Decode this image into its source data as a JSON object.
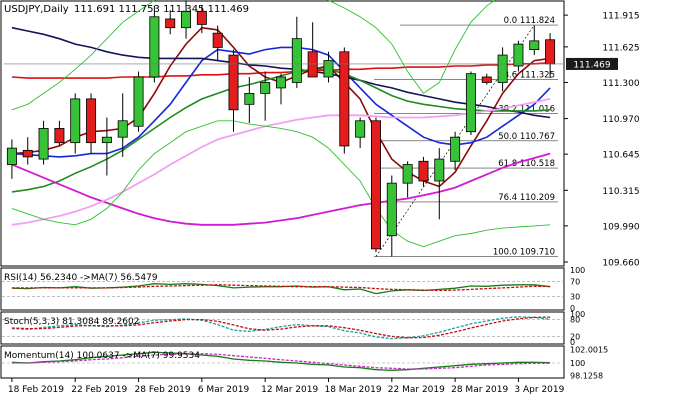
{
  "header": {
    "symbol_timeframe": "USDJPY,Daily",
    "ohlc": "111.691 111.753 111.345 111.469"
  },
  "colors": {
    "bull": "#38c238",
    "bear": "#e11d1d",
    "ma_red": "#e01010",
    "ma_darkred": "#8b0a0a",
    "ma_blue": "#1428d8",
    "ma_navy": "#14145a",
    "ma_green": "#208a20",
    "ma_magenta": "#d11ad1",
    "ma_pink": "#f2a0f2",
    "bollinger": "#30c030",
    "fib": "#000000",
    "price_label_bg": "#1a1a1a",
    "rsi_line": "#1a7a1a",
    "rsi_ma": "#c01010",
    "stoch_main": "#20a0a0",
    "stoch_signal": "#c01010",
    "mom_line": "#1a7a1a",
    "mom_ma": "#c030c0"
  },
  "chart_data": [
    {
      "type": "candlestick",
      "title": "USDJPY,Daily",
      "ylim": [
        109.66,
        111.98
      ],
      "price_axis_ticks": [
        "111.915",
        "111.625",
        "111.300",
        "110.970",
        "110.645",
        "110.315",
        "109.990",
        "109.660"
      ],
      "current_price": "111.469",
      "x_labels": [
        "18 Feb 2019",
        "22 Feb 2019",
        "28 Feb 2019",
        "6 Mar 2019",
        "12 Mar 2019",
        "18 Mar 2019",
        "22 Mar 2019",
        "28 Mar 2019",
        "3 Apr 2019"
      ],
      "x_label_index": [
        0,
        4,
        8,
        12,
        16,
        20,
        24,
        28,
        32
      ],
      "candles": [
        {
          "o": 110.55,
          "h": 110.78,
          "l": 110.42,
          "c": 110.7
        },
        {
          "o": 110.68,
          "h": 110.8,
          "l": 110.55,
          "c": 110.62
        },
        {
          "o": 110.6,
          "h": 110.95,
          "l": 110.55,
          "c": 110.88
        },
        {
          "o": 110.88,
          "h": 110.95,
          "l": 110.72,
          "c": 110.75
        },
        {
          "o": 110.75,
          "h": 111.2,
          "l": 110.65,
          "c": 111.15
        },
        {
          "o": 111.15,
          "h": 111.2,
          "l": 110.65,
          "c": 110.75
        },
        {
          "o": 110.75,
          "h": 110.98,
          "l": 110.45,
          "c": 110.8
        },
        {
          "o": 110.8,
          "h": 111.2,
          "l": 110.62,
          "c": 110.95
        },
        {
          "o": 110.9,
          "h": 111.4,
          "l": 110.85,
          "c": 111.35
        },
        {
          "o": 111.35,
          "h": 112.0,
          "l": 111.3,
          "c": 111.9
        },
        {
          "o": 111.88,
          "h": 111.96,
          "l": 111.74,
          "c": 111.8
        },
        {
          "o": 111.8,
          "h": 112.05,
          "l": 111.7,
          "c": 111.95
        },
        {
          "o": 111.95,
          "h": 112.0,
          "l": 111.75,
          "c": 111.83
        },
        {
          "o": 111.75,
          "h": 111.82,
          "l": 111.5,
          "c": 111.62
        },
        {
          "o": 111.55,
          "h": 111.6,
          "l": 110.85,
          "c": 111.05
        },
        {
          "o": 111.1,
          "h": 111.35,
          "l": 110.93,
          "c": 111.2
        },
        {
          "o": 111.2,
          "h": 111.4,
          "l": 110.95,
          "c": 111.3
        },
        {
          "o": 111.25,
          "h": 111.38,
          "l": 111.1,
          "c": 111.35
        },
        {
          "o": 111.3,
          "h": 111.9,
          "l": 111.25,
          "c": 111.7
        },
        {
          "o": 111.58,
          "h": 111.85,
          "l": 111.35,
          "c": 111.35
        },
        {
          "o": 111.35,
          "h": 111.58,
          "l": 111.3,
          "c": 111.5
        },
        {
          "o": 111.58,
          "h": 111.62,
          "l": 110.65,
          "c": 110.72
        },
        {
          "o": 110.8,
          "h": 110.98,
          "l": 110.7,
          "c": 110.95
        },
        {
          "o": 110.95,
          "h": 110.98,
          "l": 109.75,
          "c": 109.78
        },
        {
          "o": 109.9,
          "h": 110.45,
          "l": 109.71,
          "c": 110.38
        },
        {
          "o": 110.38,
          "h": 110.58,
          "l": 110.25,
          "c": 110.55
        },
        {
          "o": 110.58,
          "h": 110.62,
          "l": 110.35,
          "c": 110.4
        },
        {
          "o": 110.4,
          "h": 110.7,
          "l": 110.05,
          "c": 110.6
        },
        {
          "o": 110.58,
          "h": 110.85,
          "l": 110.5,
          "c": 110.8
        },
        {
          "o": 110.85,
          "h": 111.4,
          "l": 110.82,
          "c": 111.38
        },
        {
          "o": 111.35,
          "h": 111.38,
          "l": 111.28,
          "c": 111.3
        },
        {
          "o": 111.3,
          "h": 111.62,
          "l": 111.22,
          "c": 111.55
        },
        {
          "o": 111.45,
          "h": 111.68,
          "l": 111.4,
          "c": 111.65
        },
        {
          "o": 111.6,
          "h": 111.82,
          "l": 111.55,
          "c": 111.68
        },
        {
          "o": 111.69,
          "h": 111.75,
          "l": 111.34,
          "c": 111.47
        }
      ],
      "moving_averages": [
        {
          "key": "ma_red",
          "values": [
            111.35,
            111.34,
            111.34,
            111.34,
            111.34,
            111.34,
            111.34,
            111.35,
            111.35,
            111.35,
            111.36,
            111.36,
            111.37,
            111.37,
            111.38,
            111.38,
            111.39,
            111.39,
            111.4,
            111.41,
            111.41,
            111.42,
            111.42,
            111.43,
            111.43,
            111.44,
            111.44,
            111.44,
            111.45,
            111.45,
            111.46,
            111.46,
            111.47,
            111.47,
            111.48
          ]
        },
        {
          "key": "ma_darkred",
          "values": [
            110.65,
            110.66,
            110.68,
            110.72,
            110.8,
            110.85,
            110.86,
            110.88,
            110.98,
            111.2,
            111.45,
            111.65,
            111.8,
            111.78,
            111.62,
            111.45,
            111.35,
            111.3,
            111.36,
            111.42,
            111.45,
            111.3,
            111.15,
            110.85,
            110.6,
            110.48,
            110.4,
            110.35,
            110.48,
            110.72,
            110.95,
            111.2,
            111.38,
            111.5,
            111.52
          ]
        },
        {
          "key": "ma_blue",
          "values": [
            110.65,
            110.64,
            110.63,
            110.62,
            110.63,
            110.65,
            110.65,
            110.7,
            110.8,
            110.95,
            111.1,
            111.3,
            111.5,
            111.6,
            111.58,
            111.56,
            111.6,
            111.62,
            111.62,
            111.6,
            111.55,
            111.4,
            111.25,
            111.1,
            111.0,
            110.9,
            110.8,
            110.75,
            110.73,
            110.75,
            110.8,
            110.9,
            111.0,
            111.1,
            111.25
          ]
        },
        {
          "key": "ma_navy",
          "values": [
            111.8,
            111.77,
            111.74,
            111.7,
            111.65,
            111.62,
            111.58,
            111.55,
            111.53,
            111.52,
            111.52,
            111.52,
            111.52,
            111.5,
            111.48,
            111.46,
            111.45,
            111.43,
            111.42,
            111.4,
            111.38,
            111.35,
            111.32,
            111.28,
            111.25,
            111.21,
            111.18,
            111.15,
            111.12,
            111.1,
            111.08,
            111.05,
            111.03,
            111.0,
            110.98
          ]
        },
        {
          "key": "ma_green",
          "values": [
            110.3,
            110.32,
            110.35,
            110.4,
            110.47,
            110.53,
            110.6,
            110.68,
            110.78,
            110.88,
            110.98,
            111.07,
            111.15,
            111.2,
            111.25,
            111.28,
            111.32,
            111.36,
            111.4,
            111.42,
            111.42,
            111.38,
            111.32,
            111.25,
            111.18,
            111.13,
            111.1,
            111.08,
            111.06,
            111.05,
            111.04,
            111.04,
            111.04,
            111.04,
            111.05
          ]
        },
        {
          "key": "ma_magenta",
          "values": [
            110.55,
            110.49,
            110.43,
            110.37,
            110.31,
            110.25,
            110.2,
            110.15,
            110.1,
            110.06,
            110.03,
            110.01,
            110.0,
            110.0,
            110.0,
            110.01,
            110.02,
            110.04,
            110.06,
            110.09,
            110.12,
            110.15,
            110.18,
            110.2,
            110.22,
            110.24,
            110.27,
            110.3,
            110.34,
            110.4,
            110.46,
            110.52,
            110.57,
            110.61,
            110.65
          ]
        },
        {
          "key": "ma_pink",
          "values": [
            110.0,
            110.02,
            110.05,
            110.08,
            110.12,
            110.17,
            110.23,
            110.3,
            110.38,
            110.46,
            110.55,
            110.63,
            110.71,
            110.78,
            110.82,
            110.86,
            110.9,
            110.93,
            110.96,
            110.98,
            111.0,
            111.0,
            111.0,
            110.99,
            110.98,
            110.98,
            110.98,
            110.99,
            111.0,
            111.02,
            111.04,
            111.06,
            111.09,
            111.12,
            111.15
          ]
        },
        {
          "key": "bollinger",
          "values": [
            111.05,
            111.1,
            111.2,
            111.3,
            111.42,
            111.55,
            111.7,
            111.85,
            111.95,
            112.05,
            112.1,
            112.15,
            112.18,
            112.2,
            112.2,
            112.2,
            112.18,
            112.15,
            112.15,
            112.1,
            112.05,
            111.98,
            111.9,
            111.8,
            111.65,
            111.4,
            111.2,
            111.3,
            111.6,
            111.85,
            112.0,
            112.1,
            112.15,
            112.12,
            112.08
          ]
        },
        {
          "key": "bollinger",
          "values": [
            110.15,
            110.1,
            110.05,
            110.02,
            110.0,
            110.05,
            110.15,
            110.3,
            110.5,
            110.65,
            110.75,
            110.85,
            110.9,
            110.95,
            110.95,
            110.92,
            110.9,
            110.88,
            110.85,
            110.8,
            110.7,
            110.55,
            110.4,
            110.15,
            109.95,
            109.85,
            109.8,
            109.85,
            109.9,
            109.92,
            109.95,
            109.97,
            109.98,
            109.99,
            110.0
          ]
        }
      ],
      "fibonacci": [
        {
          "label": "0.0 111.824",
          "price": 111.824
        },
        {
          "label": "23.6 111.325",
          "price": 111.325
        },
        {
          "label": "38.2 111.016",
          "price": 111.016
        },
        {
          "label": "50.0 110.767",
          "price": 110.767
        },
        {
          "label": "61.8 110.518",
          "price": 110.518
        },
        {
          "label": "76.4 110.209",
          "price": 110.209
        },
        {
          "label": "100.0 109.710",
          "price": 109.71
        }
      ],
      "fib_anchor": {
        "from_index": 23,
        "from_price": 109.71,
        "to_index": 33,
        "to_price": 111.824
      }
    },
    {
      "type": "line",
      "title": "RSI(14) 56.2340 ->MA(7) 56.5479",
      "ylim": [
        0,
        100
      ],
      "levels": [
        70,
        30
      ],
      "axis_ticks": [
        "100",
        "70",
        "30",
        "0"
      ],
      "series": [
        {
          "key": "rsi_line",
          "values": [
            52,
            51,
            54,
            53,
            56,
            52,
            53,
            55,
            58,
            64,
            62,
            64,
            62,
            59,
            53,
            55,
            56,
            56,
            58,
            55,
            56,
            48,
            50,
            38,
            45,
            48,
            46,
            49,
            52,
            58,
            57,
            60,
            61,
            61,
            56
          ]
        },
        {
          "key": "rsi_ma",
          "values": [
            53,
            53,
            53,
            53,
            53,
            53,
            53,
            54,
            55,
            57,
            58,
            59,
            60,
            61,
            60,
            59,
            58,
            57,
            56,
            56,
            56,
            55,
            54,
            51,
            49,
            48,
            47,
            46,
            47,
            49,
            51,
            53,
            55,
            57,
            56.5
          ]
        }
      ]
    },
    {
      "type": "line",
      "title": "Stoch(5,3,3) 81.3084 89.2602",
      "ylim": [
        0,
        100
      ],
      "levels": [
        80,
        20
      ],
      "axis_ticks": [
        "100",
        "80",
        "20",
        "0"
      ],
      "series": [
        {
          "key": "stoch_main",
          "values": [
            48,
            45,
            52,
            58,
            62,
            58,
            55,
            60,
            68,
            78,
            80,
            82,
            78,
            62,
            42,
            38,
            45,
            55,
            62,
            58,
            55,
            40,
            32,
            18,
            12,
            15,
            22,
            35,
            50,
            65,
            75,
            85,
            90,
            88,
            81
          ]
        },
        {
          "key": "stoch_signal",
          "values": [
            50,
            48,
            48,
            52,
            57,
            59,
            58,
            58,
            61,
            69,
            75,
            80,
            80,
            74,
            61,
            47,
            42,
            46,
            54,
            58,
            58,
            51,
            42,
            30,
            20,
            15,
            16,
            24,
            36,
            50,
            63,
            75,
            83,
            88,
            89
          ]
        }
      ]
    },
    {
      "type": "line",
      "title": "Momentum(14) 100.0637 ->MA(7) 99.9534",
      "ylim": [
        98.05,
        102.25
      ],
      "levels": [
        100
      ],
      "axis_ticks": [
        "102.0015",
        "100",
        "98.1258"
      ],
      "series": [
        {
          "key": "mom_line",
          "values": [
            100.1,
            100.0,
            100.2,
            100.3,
            100.5,
            100.8,
            101.0,
            101.2,
            101.4,
            101.6,
            101.5,
            101.4,
            101.2,
            101.0,
            100.6,
            100.4,
            100.3,
            100.1,
            100.0,
            99.8,
            99.7,
            99.4,
            99.3,
            99.0,
            98.9,
            99.0,
            99.2,
            99.4,
            99.6,
            99.8,
            99.9,
            100.0,
            100.1,
            100.1,
            100.06
          ]
        },
        {
          "key": "mom_ma",
          "values": [
            100.0,
            100.0,
            100.1,
            100.2,
            100.3,
            100.5,
            100.6,
            100.8,
            101.0,
            101.2,
            101.3,
            101.4,
            101.4,
            101.3,
            101.1,
            100.9,
            100.7,
            100.5,
            100.3,
            100.1,
            99.9,
            99.7,
            99.5,
            99.3,
            99.2,
            99.1,
            99.1,
            99.2,
            99.3,
            99.5,
            99.7,
            99.8,
            99.9,
            99.95,
            99.95
          ]
        }
      ]
    }
  ]
}
